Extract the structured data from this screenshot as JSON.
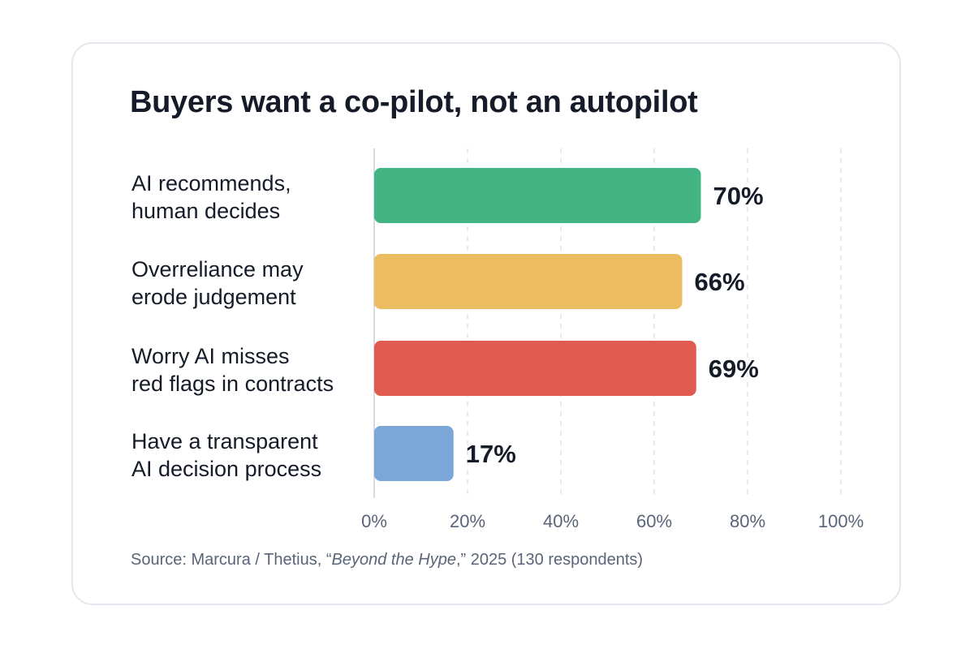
{
  "chart_data": {
    "type": "bar",
    "orientation": "horizontal",
    "title": "Buyers want a co-pilot, not an autopilot",
    "categories": [
      [
        "AI recommends,",
        "human decides"
      ],
      [
        "Overreliance may",
        "erode judgement"
      ],
      [
        "Worry AI misses",
        "red flags in contracts"
      ],
      [
        "Have a transparent",
        "AI decision process"
      ]
    ],
    "values": [
      70,
      66,
      69,
      17
    ],
    "value_labels": [
      "70%",
      "66%",
      "69%",
      "17%"
    ],
    "colors": [
      "#43b584",
      "#ecbd60",
      "#e05a4f",
      "#7aa7d8"
    ],
    "xlim": [
      0,
      100
    ],
    "xticks": [
      0,
      20,
      40,
      60,
      80,
      100
    ],
    "xtick_labels": [
      "0%",
      "20%",
      "40%",
      "60%",
      "80%",
      "100%"
    ],
    "grid": "vertical dashed",
    "xlabel": "",
    "ylabel": ""
  },
  "source": {
    "prefix": "Source: Marcura / Thetius, “",
    "title": "Beyond the Hype",
    "suffix": ",” 2025 (130 respondents)"
  }
}
